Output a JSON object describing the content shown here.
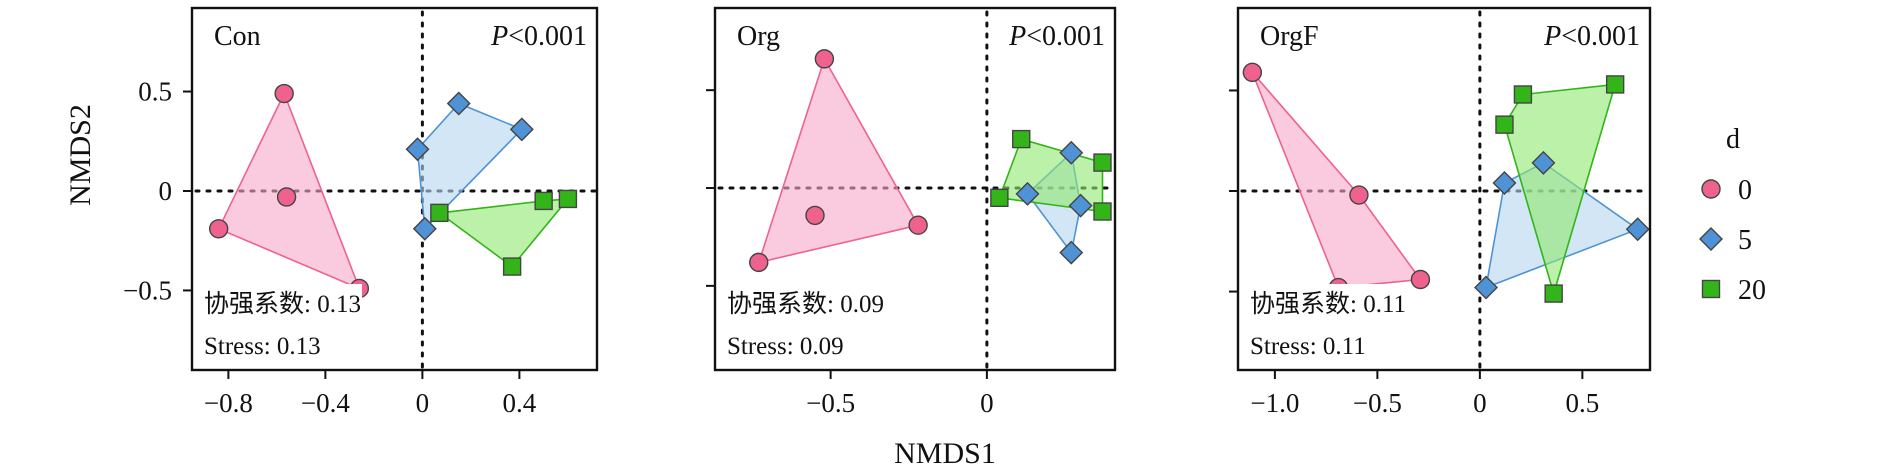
{
  "chart_data": {
    "type": "scatter",
    "subtype": "NMDS ordination with convex hulls, three panels",
    "xlabel": "NMDS1",
    "ylabel": "NMDS2",
    "legend": {
      "title": "d",
      "position": "right",
      "entries": [
        {
          "label": "0",
          "shape": "circle",
          "color": "#f0628e",
          "fill": "#f6a6c8"
        },
        {
          "label": "5",
          "shape": "diamond",
          "color": "#4f93d6",
          "fill": "#b5d5ee"
        },
        {
          "label": "20",
          "shape": "square",
          "color": "#33b519",
          "fill": "#8fe870"
        }
      ]
    },
    "reference_lines": {
      "x": 0,
      "y": 0,
      "style": "dotted"
    },
    "panels": [
      {
        "label": "Con",
        "p_text": "P<0.001",
        "coef_label": "协强系数: 0.13",
        "stress_label": "Stress: 0.13",
        "xlim": [
          -0.95,
          0.72
        ],
        "ylim": [
          -0.9,
          0.92
        ],
        "xticks": [
          -0.8,
          -0.4,
          0,
          0.4
        ],
        "xtick_labels": [
          "−0.8",
          "−0.4",
          "0",
          "0.4"
        ],
        "yticks": [
          0.5,
          0,
          -0.5
        ],
        "ytick_labels": [
          "0.5",
          "0",
          "−0.5"
        ],
        "series": [
          {
            "name": "0",
            "points": [
              [
                -0.57,
                0.49
              ],
              [
                -0.84,
                -0.19
              ],
              [
                -0.26,
                -0.49
              ],
              [
                -0.56,
                -0.03
              ]
            ]
          },
          {
            "name": "5",
            "points": [
              [
                -0.02,
                0.21
              ],
              [
                0.15,
                0.44
              ],
              [
                0.41,
                0.31
              ],
              [
                0.01,
                -0.19
              ]
            ]
          },
          {
            "name": "20",
            "points": [
              [
                0.07,
                -0.11
              ],
              [
                0.37,
                -0.38
              ],
              [
                0.5,
                -0.05
              ],
              [
                0.6,
                -0.04
              ]
            ]
          }
        ]
      },
      {
        "label": "Org",
        "p_text": "P<0.001",
        "coef_label": "协强系数: 0.09",
        "stress_label": "Stress: 0.09",
        "xlim": [
          -0.87,
          0.41
        ],
        "ylim": [
          -0.93,
          0.92
        ],
        "xticks": [
          -0.5,
          0
        ],
        "xtick_labels": [
          "−0.5",
          "0"
        ],
        "yticks": [],
        "ytick_labels": [],
        "series": [
          {
            "name": "0",
            "points": [
              [
                -0.52,
                0.66
              ],
              [
                -0.73,
                -0.38
              ],
              [
                -0.22,
                -0.19
              ],
              [
                -0.55,
                -0.14
              ]
            ]
          },
          {
            "name": "5",
            "points": [
              [
                0.13,
                -0.03
              ],
              [
                0.27,
                0.18
              ],
              [
                0.3,
                -0.09
              ],
              [
                0.27,
                -0.33
              ]
            ]
          },
          {
            "name": "20",
            "points": [
              [
                0.11,
                0.25
              ],
              [
                0.04,
                -0.05
              ],
              [
                0.37,
                0.13
              ],
              [
                0.37,
                -0.12
              ]
            ]
          }
        ]
      },
      {
        "label": "OrgF",
        "p_text": "P<0.001",
        "coef_label": "协强系数: 0.11",
        "stress_label": "Stress: 0.11",
        "xlim": [
          -1.18,
          0.83
        ],
        "ylim": [
          -0.89,
          0.91
        ],
        "xticks": [
          -1.0,
          -0.5,
          0,
          0.5
        ],
        "xtick_labels": [
          "−1.0",
          "−0.5",
          "0",
          "0.5"
        ],
        "yticks": [],
        "ytick_labels": [],
        "series": [
          {
            "name": "0",
            "points": [
              [
                -1.11,
                0.59
              ],
              [
                -0.69,
                -0.48
              ],
              [
                -0.29,
                -0.44
              ],
              [
                -0.59,
                -0.02
              ]
            ]
          },
          {
            "name": "5",
            "points": [
              [
                0.03,
                -0.48
              ],
              [
                0.12,
                0.04
              ],
              [
                0.31,
                0.14
              ],
              [
                0.77,
                -0.19
              ]
            ]
          },
          {
            "name": "20",
            "points": [
              [
                0.21,
                0.48
              ],
              [
                0.66,
                0.53
              ],
              [
                0.36,
                -0.51
              ],
              [
                0.12,
                0.33
              ]
            ]
          }
        ]
      }
    ]
  }
}
